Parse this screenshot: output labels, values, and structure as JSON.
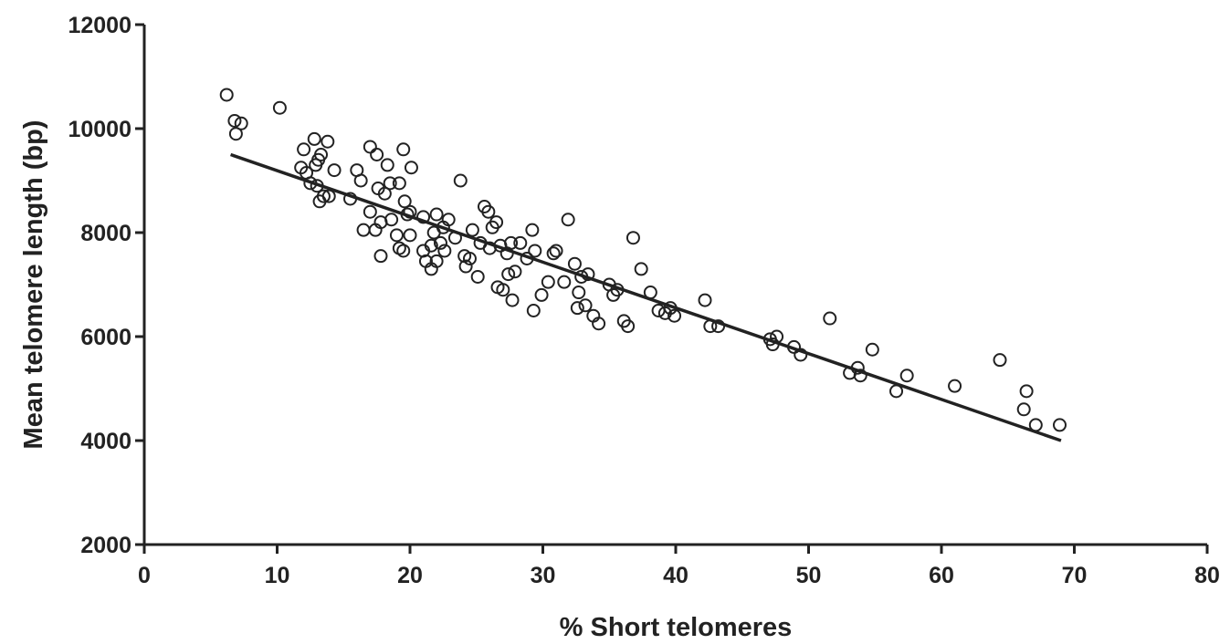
{
  "chart_data": {
    "type": "scatter",
    "title": "",
    "xlabel": "% Short telomeres",
    "ylabel": "Mean telomere length (bp)",
    "xlim": [
      0,
      80
    ],
    "ylim": [
      2000,
      12000
    ],
    "xticks": [
      0,
      10,
      20,
      30,
      40,
      50,
      60,
      70,
      80
    ],
    "yticks": [
      2000,
      4000,
      6000,
      8000,
      10000,
      12000
    ],
    "grid": false,
    "legend": "none",
    "marker": "open-circle",
    "series": [
      {
        "points": [
          [
            6.2,
            10650
          ],
          [
            6.8,
            10150
          ],
          [
            7.3,
            10100
          ],
          [
            6.9,
            9900
          ],
          [
            10.2,
            10400
          ],
          [
            12.0,
            9600
          ],
          [
            12.8,
            9800
          ],
          [
            13.3,
            9500
          ],
          [
            13.8,
            9750
          ],
          [
            12.9,
            9300
          ],
          [
            13.1,
            9400
          ],
          [
            11.8,
            9250
          ],
          [
            12.2,
            9150
          ],
          [
            14.3,
            9200
          ],
          [
            12.5,
            8950
          ],
          [
            13.0,
            8900
          ],
          [
            13.5,
            8700
          ],
          [
            13.2,
            8600
          ],
          [
            13.9,
            8700
          ],
          [
            15.5,
            8650
          ],
          [
            16.0,
            9200
          ],
          [
            16.3,
            9000
          ],
          [
            17.0,
            9650
          ],
          [
            17.5,
            9500
          ],
          [
            18.3,
            9300
          ],
          [
            18.5,
            8950
          ],
          [
            17.6,
            8850
          ],
          [
            18.1,
            8750
          ],
          [
            19.5,
            9600
          ],
          [
            20.1,
            9250
          ],
          [
            19.2,
            8950
          ],
          [
            19.6,
            8600
          ],
          [
            20.0,
            8400
          ],
          [
            17.0,
            8400
          ],
          [
            17.8,
            8200
          ],
          [
            16.5,
            8050
          ],
          [
            17.4,
            8050
          ],
          [
            18.6,
            8250
          ],
          [
            19.8,
            8350
          ],
          [
            19.0,
            7950
          ],
          [
            19.2,
            7700
          ],
          [
            19.5,
            7650
          ],
          [
            20.0,
            7950
          ],
          [
            17.8,
            7550
          ],
          [
            21.0,
            7650
          ],
          [
            21.2,
            7450
          ],
          [
            21.6,
            7300
          ],
          [
            21.0,
            8300
          ],
          [
            22.0,
            8350
          ],
          [
            22.5,
            8100
          ],
          [
            21.8,
            8000
          ],
          [
            22.9,
            8250
          ],
          [
            22.3,
            7800
          ],
          [
            21.6,
            7750
          ],
          [
            22.6,
            7650
          ],
          [
            22.0,
            7450
          ],
          [
            23.4,
            7900
          ],
          [
            23.8,
            9000
          ],
          [
            24.1,
            7550
          ],
          [
            24.5,
            7500
          ],
          [
            24.7,
            8050
          ],
          [
            25.3,
            7800
          ],
          [
            25.6,
            8500
          ],
          [
            25.9,
            8400
          ],
          [
            26.2,
            8100
          ],
          [
            26.5,
            8200
          ],
          [
            24.2,
            7350
          ],
          [
            25.1,
            7150
          ],
          [
            26.0,
            7700
          ],
          [
            26.8,
            7750
          ],
          [
            27.3,
            7600
          ],
          [
            27.6,
            7800
          ],
          [
            28.3,
            7800
          ],
          [
            28.8,
            7500
          ],
          [
            29.2,
            8050
          ],
          [
            29.4,
            7650
          ],
          [
            26.6,
            6950
          ],
          [
            27.0,
            6900
          ],
          [
            27.4,
            7200
          ],
          [
            27.9,
            7250
          ],
          [
            27.7,
            6700
          ],
          [
            29.3,
            6500
          ],
          [
            29.9,
            6800
          ],
          [
            30.4,
            7050
          ],
          [
            30.8,
            7600
          ],
          [
            31.0,
            7650
          ],
          [
            31.6,
            7050
          ],
          [
            31.9,
            8250
          ],
          [
            32.4,
            7400
          ],
          [
            32.7,
            6850
          ],
          [
            32.9,
            7150
          ],
          [
            33.2,
            6600
          ],
          [
            32.6,
            6550
          ],
          [
            33.4,
            7200
          ],
          [
            33.8,
            6400
          ],
          [
            34.2,
            6250
          ],
          [
            35.0,
            7000
          ],
          [
            35.6,
            6900
          ],
          [
            35.3,
            6800
          ],
          [
            36.1,
            6300
          ],
          [
            36.4,
            6200
          ],
          [
            36.8,
            7900
          ],
          [
            37.4,
            7300
          ],
          [
            38.1,
            6850
          ],
          [
            38.7,
            6500
          ],
          [
            39.2,
            6450
          ],
          [
            39.6,
            6550
          ],
          [
            39.9,
            6400
          ],
          [
            42.2,
            6700
          ],
          [
            42.6,
            6200
          ],
          [
            43.2,
            6200
          ],
          [
            47.1,
            5950
          ],
          [
            47.6,
            6000
          ],
          [
            47.3,
            5850
          ],
          [
            48.9,
            5800
          ],
          [
            49.4,
            5650
          ],
          [
            51.6,
            6350
          ],
          [
            53.1,
            5300
          ],
          [
            53.7,
            5400
          ],
          [
            53.9,
            5250
          ],
          [
            54.8,
            5750
          ],
          [
            56.6,
            4950
          ],
          [
            57.4,
            5250
          ],
          [
            61.0,
            5050
          ],
          [
            64.4,
            5550
          ],
          [
            66.4,
            4950
          ],
          [
            66.2,
            4600
          ],
          [
            67.1,
            4300
          ],
          [
            68.9,
            4300
          ]
        ]
      }
    ],
    "trendline": {
      "x": [
        6.5,
        69.0
      ],
      "y": [
        9500,
        4000
      ]
    }
  }
}
